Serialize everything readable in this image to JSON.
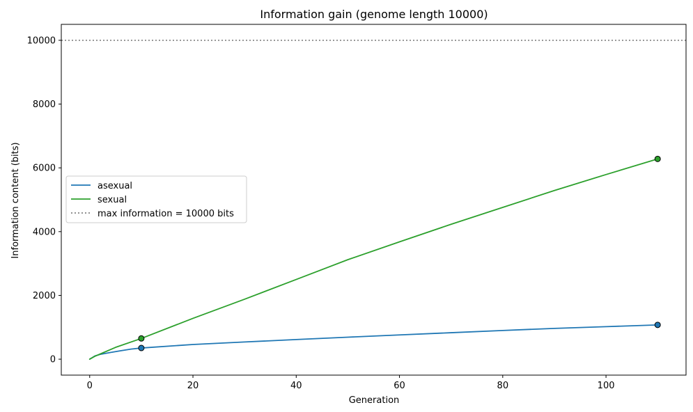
{
  "chart_data": {
    "type": "line",
    "title": "Information gain (genome length 10000)",
    "xlabel": "Generation",
    "ylabel": "Information content (bits)",
    "xlim": [
      -5.5,
      115.5
    ],
    "ylim": [
      -500,
      10500
    ],
    "xticks": [
      0,
      20,
      40,
      60,
      80,
      100
    ],
    "yticks": [
      0,
      2000,
      4000,
      6000,
      8000,
      10000
    ],
    "grid": false,
    "legend_position": "center-left",
    "series": [
      {
        "name": "asexual",
        "color": "#1f77b4",
        "x": [
          0,
          1,
          2,
          4,
          6,
          8,
          10,
          20,
          30,
          40,
          50,
          60,
          70,
          80,
          90,
          100,
          110
        ],
        "y": [
          0,
          100,
          150,
          210,
          265,
          315,
          350,
          460,
          540,
          615,
          690,
          760,
          830,
          900,
          965,
          1020,
          1075
        ],
        "markers": [
          {
            "x": 10,
            "y": 350
          },
          {
            "x": 110,
            "y": 1075
          }
        ]
      },
      {
        "name": "sexual",
        "color": "#2ca02c",
        "x": [
          0,
          1,
          2,
          5,
          10,
          20,
          30,
          40,
          50,
          60,
          70,
          80,
          90,
          100,
          110
        ],
        "y": [
          0,
          90,
          160,
          370,
          650,
          1280,
          1880,
          2500,
          3120,
          3680,
          4230,
          4760,
          5290,
          5790,
          6280
        ],
        "markers": [
          {
            "x": 10,
            "y": 650
          },
          {
            "x": 110,
            "y": 6280
          }
        ]
      }
    ],
    "reference_line": {
      "label": "max information = 10000 bits",
      "y": 10000,
      "color": "#808080",
      "style": "dotted"
    }
  }
}
